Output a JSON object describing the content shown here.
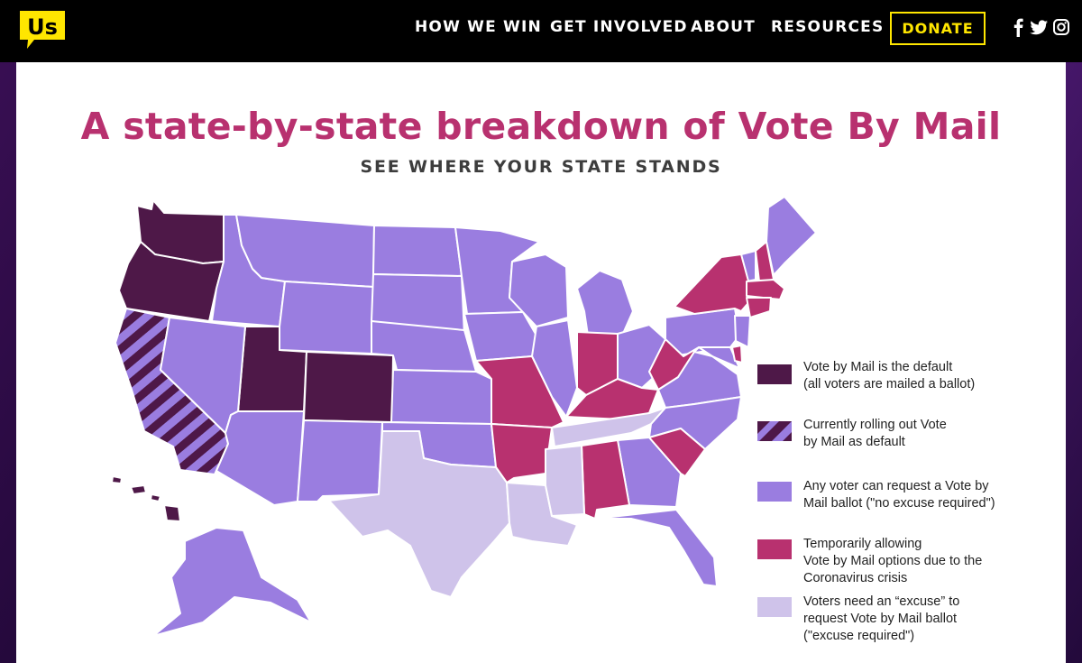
{
  "colors": {
    "default": "#4e1848",
    "rollout": "#4e1848",
    "no_excuse": "#9a7de0",
    "temporary": "#b8316f",
    "excuse": "#cfc3ea",
    "title": "#b8316f",
    "donate": "#ffe600"
  },
  "header": {
    "logo_text": "Us",
    "nav": [
      "HOW WE WIN",
      "GET INVOLVED",
      "ABOUT",
      "RESOURCES"
    ],
    "donate_label": "DONATE",
    "social_icons": [
      "facebook-icon",
      "twitter-icon",
      "instagram-icon"
    ]
  },
  "main": {
    "title": "A state-by-state breakdown of Vote By Mail",
    "subtitle": "SEE WHERE YOUR STATE STANDS"
  },
  "legend": [
    {
      "key": "default",
      "lines": [
        "Vote by Mail is the default",
        "(all voters are mailed a ballot)"
      ]
    },
    {
      "key": "rollout",
      "lines": [
        "Currently rolling out Vote",
        "by Mail as default"
      ]
    },
    {
      "key": "no_excuse",
      "lines": [
        "Any voter can request a Vote by",
        "Mail ballot (\"no excuse required\")"
      ]
    },
    {
      "key": "temporary",
      "lines": [
        "Temporarily allowing",
        "Vote by Mail options due to the",
        "Coronavirus crisis"
      ]
    },
    {
      "key": "excuse",
      "lines": [
        "Voters need an “excuse” to",
        "request Vote by Mail ballot",
        "(\"excuse required\")"
      ]
    }
  ],
  "map_data": {
    "categories": {
      "default": [
        "WA",
        "OR",
        "UT",
        "CO",
        "HI"
      ],
      "rollout": [
        "CA"
      ],
      "no_excuse": [
        "ID",
        "MT",
        "WY",
        "NV",
        "AZ",
        "NM",
        "ND",
        "SD",
        "NE",
        "KS",
        "OK",
        "MN",
        "IA",
        "WI",
        "IL",
        "MI",
        "OH",
        "PA",
        "NJ",
        "MD",
        "VA",
        "NC",
        "GA",
        "FL",
        "VT",
        "ME",
        "AK"
      ],
      "temporary": [
        "MO",
        "AR",
        "IN",
        "KY",
        "WV",
        "SC",
        "AL",
        "NY",
        "NH",
        "MA",
        "CT",
        "DE"
      ],
      "excuse": [
        "TX",
        "LA",
        "MS",
        "TN"
      ]
    }
  }
}
